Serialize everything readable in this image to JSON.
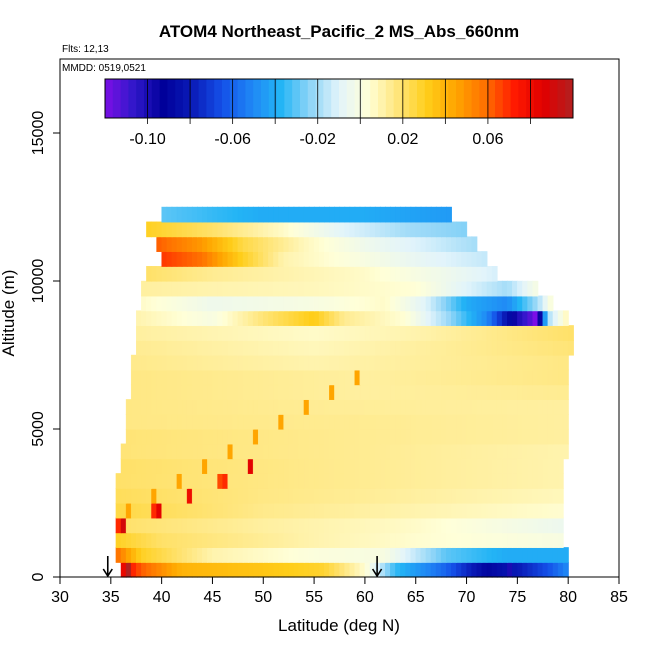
{
  "chart_data": {
    "type": "heatmap",
    "title": "ATOM4 Northeast_Pacific_2 MS_Abs_660nm",
    "flights_label": "Flts: 12,13",
    "date_label": "MMDD: 0519,0521",
    "xlabel": "Latitude (deg N)",
    "ylabel": "Altitude (m)",
    "xlim": [
      30,
      85
    ],
    "ylim": [
      0,
      17500
    ],
    "x_ticks": [
      30,
      35,
      40,
      45,
      50,
      55,
      60,
      65,
      70,
      75,
      80,
      85
    ],
    "y_ticks": [
      0,
      5000,
      10000,
      15000
    ],
    "color_scale": {
      "min": -0.12,
      "max": 0.1,
      "tick_values": [
        -0.1,
        -0.06,
        -0.02,
        0.02,
        0.06
      ],
      "tick_labels": [
        "-0.10",
        "-0.06",
        "-0.02",
        "0.02",
        "0.06"
      ],
      "colors": [
        "#7b0fe6",
        "#2f18c9",
        "#00009a",
        "#0a1cb8",
        "#1450e8",
        "#1f86f5",
        "#23b4f5",
        "#8dd4f7",
        "#e2f4fb",
        "#ffffd8",
        "#ffe57a",
        "#ffce1a",
        "#ffa500",
        "#ff6f00",
        "#ff1a00",
        "#e00000",
        "#b22020"
      ]
    },
    "markers": {
      "type": "down-arrow",
      "latitudes": [
        34.7,
        61.2
      ]
    },
    "cell_size": {
      "lat": 0.5,
      "alt": 500
    },
    "bands": [
      {
        "alt": 250,
        "lat_min": 36,
        "lat_max": 80,
        "stops": [
          [
            36,
            0.085
          ],
          [
            38,
            0.062
          ],
          [
            42,
            0.04
          ],
          [
            50,
            0.034
          ],
          [
            56,
            0.028
          ],
          [
            60,
            0.005
          ],
          [
            63,
            -0.035
          ],
          [
            68,
            -0.06
          ],
          [
            72,
            -0.09
          ],
          [
            75,
            -0.08
          ],
          [
            78,
            -0.065
          ],
          [
            80,
            -0.05
          ]
        ]
      },
      {
        "alt": 750,
        "lat_min": 35.5,
        "lat_max": 80,
        "stops": [
          [
            35.5,
            0.06
          ],
          [
            38,
            0.03
          ],
          [
            45,
            0.01
          ],
          [
            55,
            0.002
          ],
          [
            62,
            0.0
          ],
          [
            68,
            -0.03
          ],
          [
            74,
            -0.04
          ],
          [
            80,
            -0.04
          ]
        ]
      },
      {
        "alt": 1250,
        "lat_min": 35.5,
        "lat_max": 79.5,
        "stops": [
          [
            35.5,
            0.03
          ],
          [
            40,
            0.02
          ],
          [
            55,
            0.01
          ],
          [
            65,
            0.005
          ],
          [
            79.5,
            0.0
          ]
        ]
      },
      {
        "alt": 1750,
        "lat_min": 35.5,
        "lat_max": 79.5,
        "stops": [
          [
            35.5,
            0.02
          ],
          [
            50,
            0.012
          ],
          [
            65,
            0.006
          ],
          [
            79.5,
            -0.005
          ]
        ]
      },
      {
        "alt": 2250,
        "lat_min": 35.5,
        "lat_max": 79.5,
        "stops": [
          [
            35.5,
            0.025
          ],
          [
            50,
            0.015
          ],
          [
            79.5,
            0.005
          ]
        ]
      },
      {
        "alt": 2750,
        "lat_min": 35.5,
        "lat_max": 79.5,
        "stops": [
          [
            35.5,
            0.022
          ],
          [
            50,
            0.016
          ],
          [
            79.5,
            0.008
          ]
        ]
      },
      {
        "alt": 3250,
        "lat_min": 35.5,
        "lat_max": 79.5,
        "stops": [
          [
            35.5,
            0.02
          ],
          [
            55,
            0.015
          ],
          [
            79.5,
            0.01
          ]
        ]
      },
      {
        "alt": 3750,
        "lat_min": 36,
        "lat_max": 79.5,
        "stops": [
          [
            36,
            0.02
          ],
          [
            55,
            0.015
          ],
          [
            79.5,
            0.01
          ]
        ]
      },
      {
        "alt": 4250,
        "lat_min": 36,
        "lat_max": 80,
        "stops": [
          [
            36,
            0.018
          ],
          [
            60,
            0.014
          ],
          [
            80,
            0.01
          ]
        ]
      },
      {
        "alt": 4750,
        "lat_min": 36.5,
        "lat_max": 80,
        "stops": [
          [
            36.5,
            0.018
          ],
          [
            60,
            0.014
          ],
          [
            80,
            0.012
          ]
        ]
      },
      {
        "alt": 5250,
        "lat_min": 36.5,
        "lat_max": 80,
        "stops": [
          [
            36.5,
            0.016
          ],
          [
            60,
            0.014
          ],
          [
            80,
            0.012
          ]
        ]
      },
      {
        "alt": 5750,
        "lat_min": 36.5,
        "lat_max": 80,
        "stops": [
          [
            36.5,
            0.016
          ],
          [
            60,
            0.013
          ],
          [
            80,
            0.012
          ]
        ]
      },
      {
        "alt": 6250,
        "lat_min": 37,
        "lat_max": 80,
        "stops": [
          [
            37,
            0.016
          ],
          [
            60,
            0.012
          ],
          [
            80,
            0.014
          ]
        ]
      },
      {
        "alt": 6750,
        "lat_min": 37,
        "lat_max": 80,
        "stops": [
          [
            37,
            0.016
          ],
          [
            60,
            0.012
          ],
          [
            80,
            0.016
          ]
        ]
      },
      {
        "alt": 7250,
        "lat_min": 37,
        "lat_max": 80,
        "stops": [
          [
            37,
            0.015
          ],
          [
            55,
            0.01
          ],
          [
            80,
            0.016
          ]
        ]
      },
      {
        "alt": 7750,
        "lat_min": 37.5,
        "lat_max": 80.5,
        "stops": [
          [
            37.5,
            0.014
          ],
          [
            55,
            0.008
          ],
          [
            80.5,
            0.018
          ]
        ]
      },
      {
        "alt": 8250,
        "lat_min": 37.5,
        "lat_max": 80.5,
        "stops": [
          [
            37.5,
            0.012
          ],
          [
            55,
            0.006
          ],
          [
            65,
            0.01
          ],
          [
            80.5,
            0.02
          ]
        ]
      },
      {
        "alt": 8750,
        "lat_min": 37.5,
        "lat_max": 80,
        "stops": [
          [
            37.5,
            0.01
          ],
          [
            45,
            0.0
          ],
          [
            50,
            0.018
          ],
          [
            55,
            0.032
          ],
          [
            58,
            0.014
          ],
          [
            64,
            0.004
          ],
          [
            68,
            -0.02
          ],
          [
            72,
            -0.05
          ],
          [
            75,
            -0.1
          ],
          [
            77,
            -0.12
          ],
          [
            78,
            -0.02
          ],
          [
            80,
            0.01
          ]
        ]
      },
      {
        "alt": 9250,
        "lat_min": 38,
        "lat_max": 78.5,
        "stops": [
          [
            38,
            0.006
          ],
          [
            45,
            -0.004
          ],
          [
            55,
            0.0
          ],
          [
            62,
            0.006
          ],
          [
            66,
            -0.01
          ],
          [
            70,
            -0.04
          ],
          [
            74,
            -0.05
          ],
          [
            77,
            -0.02
          ],
          [
            78.5,
            0.005
          ]
        ]
      },
      {
        "alt": 9750,
        "lat_min": 38,
        "lat_max": 77,
        "stops": [
          [
            38,
            0.012
          ],
          [
            45,
            0.01
          ],
          [
            55,
            0.008
          ],
          [
            65,
            0.004
          ],
          [
            70,
            -0.01
          ],
          [
            74,
            -0.02
          ],
          [
            77,
            0.0
          ]
        ]
      },
      {
        "alt": 10250,
        "lat_min": 38.5,
        "lat_max": 73,
        "stops": [
          [
            38.5,
            0.02
          ],
          [
            45,
            0.014
          ],
          [
            60,
            0.006
          ],
          [
            68,
            -0.004
          ],
          [
            73,
            -0.012
          ]
        ]
      },
      {
        "alt": 10750,
        "lat_min": 40,
        "lat_max": 72,
        "stops": [
          [
            40,
            0.068
          ],
          [
            44,
            0.058
          ],
          [
            48,
            0.03
          ],
          [
            52,
            0.01
          ],
          [
            60,
            0.0
          ],
          [
            66,
            -0.008
          ],
          [
            72,
            -0.015
          ]
        ]
      },
      {
        "alt": 11250,
        "lat_min": 39.5,
        "lat_max": 71,
        "stops": [
          [
            39.5,
            0.062
          ],
          [
            44,
            0.048
          ],
          [
            48,
            0.025
          ],
          [
            54,
            0.008
          ],
          [
            60,
            -0.004
          ],
          [
            66,
            -0.012
          ],
          [
            71,
            -0.02
          ]
        ]
      },
      {
        "alt": 11750,
        "lat_min": 38.5,
        "lat_max": 70,
        "stops": [
          [
            38.5,
            0.03
          ],
          [
            45,
            0.02
          ],
          [
            52,
            0.006
          ],
          [
            58,
            -0.01
          ],
          [
            64,
            -0.02
          ],
          [
            70,
            -0.025
          ]
        ]
      },
      {
        "alt": 12250,
        "lat_min": 40,
        "lat_max": 68.5,
        "stops": [
          [
            40,
            -0.03
          ],
          [
            50,
            -0.04
          ],
          [
            60,
            -0.04
          ],
          [
            68.5,
            -0.045
          ]
        ]
      }
    ],
    "diagonal_streaks": [
      {
        "lat_start": 36.5,
        "alt_start": 2250,
        "lat_step": 2.5,
        "alt_step": 500,
        "count": 10,
        "value": 0.045
      },
      {
        "lat_start": 35.5,
        "alt_start": 1750,
        "lat_step": 3.5,
        "alt_step": 500,
        "count": 4,
        "value": 0.07
      }
    ],
    "spot_cells": [
      {
        "lat": 36.5,
        "alt": 250,
        "value": 0.1
      },
      {
        "lat": 36,
        "alt": 1750,
        "value": 0.09
      },
      {
        "lat": 39.5,
        "alt": 2250,
        "value": 0.085
      },
      {
        "lat": 42.5,
        "alt": 2750,
        "value": 0.08
      },
      {
        "lat": 45.5,
        "alt": 3250,
        "value": 0.065
      },
      {
        "lat": 48.5,
        "alt": 3750,
        "value": 0.085
      },
      {
        "lat": 76.5,
        "alt": 8750,
        "value": -0.12
      },
      {
        "lat": 74,
        "alt": 250,
        "value": -0.1
      }
    ]
  }
}
